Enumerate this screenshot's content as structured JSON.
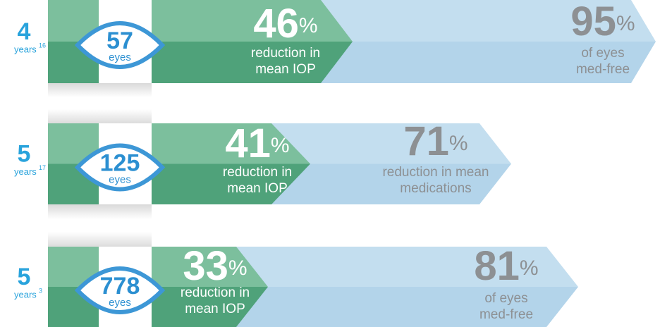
{
  "rows": [
    {
      "years": "4",
      "years_label": "years",
      "ref": "16",
      "eyes": "57",
      "eyes_label": "eyes",
      "stats": [
        {
          "value": "46",
          "unit": "%",
          "lines": [
            "reduction in",
            "mean IOP"
          ]
        },
        {
          "value": "95",
          "unit": "%",
          "lines": [
            "of eyes",
            "med-free"
          ]
        }
      ]
    },
    {
      "years": "5",
      "years_label": "years",
      "ref": "17",
      "eyes": "125",
      "eyes_label": "eyes",
      "stats": [
        {
          "value": "41",
          "unit": "%",
          "lines": [
            "reduction in",
            "mean IOP"
          ]
        },
        {
          "value": "71",
          "unit": "%",
          "lines": [
            "reduction in mean",
            "medications"
          ]
        }
      ]
    },
    {
      "years": "5",
      "years_label": "years",
      "ref": "3",
      "eyes": "778",
      "eyes_label": "eyes",
      "stats": [
        {
          "value": "33",
          "unit": "%",
          "lines": [
            "reduction in",
            "mean IOP"
          ]
        },
        {
          "value": "81",
          "unit": "%",
          "lines": [
            "of eyes",
            "med-free"
          ]
        }
      ]
    }
  ]
}
